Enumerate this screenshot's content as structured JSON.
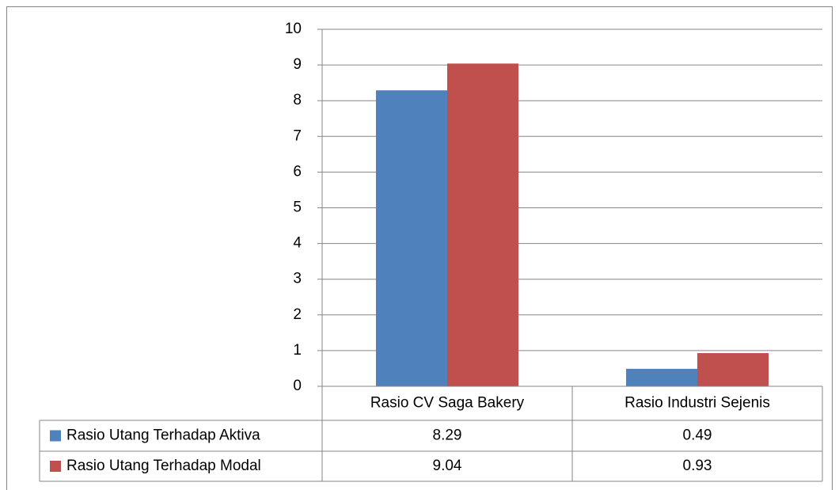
{
  "chart_data": {
    "type": "bar",
    "categories": [
      "Rasio CV Saga Bakery",
      "Rasio Industri Sejenis"
    ],
    "series": [
      {
        "name": "Rasio Utang Terhadap Aktiva",
        "color": "#4f81bd",
        "values": [
          8.29,
          0.49
        ]
      },
      {
        "name": "Rasio Utang Terhadap Modal",
        "color": "#c0504d",
        "values": [
          9.04,
          0.93
        ]
      }
    ],
    "ylim": [
      0,
      10
    ],
    "yticks": [
      0,
      1,
      2,
      3,
      4,
      5,
      6,
      7,
      8,
      9,
      10
    ],
    "grid": true,
    "data_table": true
  }
}
